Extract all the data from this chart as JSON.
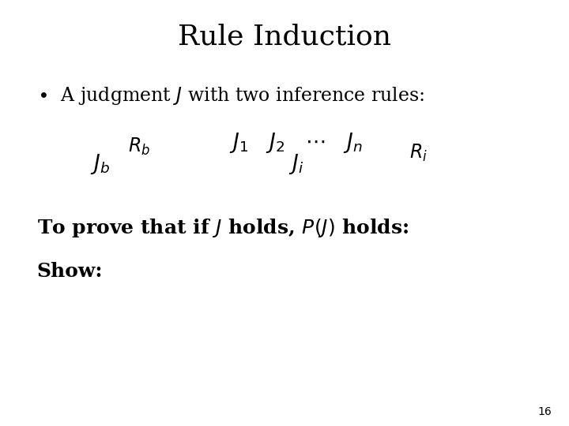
{
  "title": "Rule Induction",
  "title_fontsize": 26,
  "background_color": "#ffffff",
  "slide_number": "16",
  "bullet_fontsize": 17,
  "math_fontsize": 19,
  "body_fontsize": 17
}
